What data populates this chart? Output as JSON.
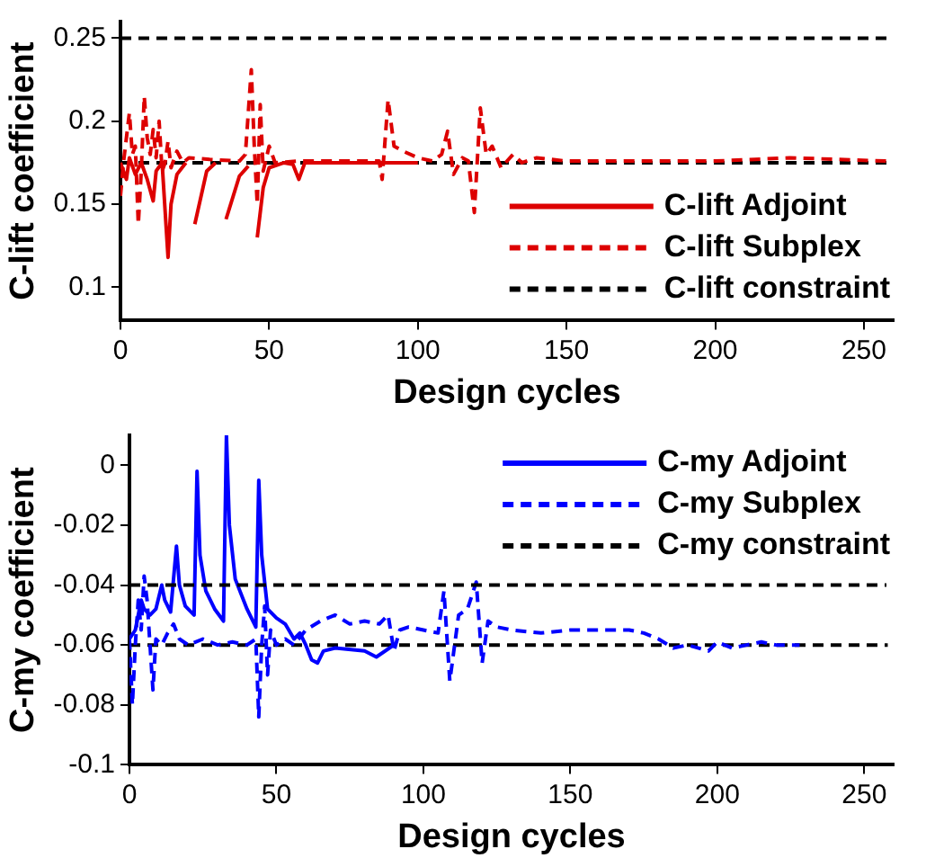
{
  "chart_data": [
    {
      "type": "line",
      "xlabel": "Design cycles",
      "ylabel": "C-lift coefficient",
      "xlim": [
        0,
        260
      ],
      "xticks": [
        0,
        50,
        100,
        150,
        200,
        250
      ],
      "ylim": [
        0.08,
        0.26
      ],
      "yticks": [
        {
          "value": 0.1,
          "label": "0.1"
        },
        {
          "value": 0.15,
          "label": "0.15"
        },
        {
          "value": 0.2,
          "label": "0.2"
        },
        {
          "value": 0.25,
          "label": "0.25"
        }
      ],
      "grid": false,
      "legend": "bottom right",
      "marker": "none",
      "ref_lines": [
        {
          "axis": "y",
          "value": 0.25,
          "color": "#000000",
          "line_style": "dashed"
        }
      ],
      "series": [
        {
          "name": "C-lift Adjoint",
          "color": "#dd0000",
          "line_style": "solid",
          "x": [
            0,
            2,
            3,
            5,
            7,
            9,
            11,
            12,
            14,
            16,
            17,
            19,
            22,
            23,
            25,
            29,
            32,
            33,
            35.5,
            40,
            43,
            44,
            46,
            48,
            50,
            55,
            58,
            60,
            62,
            70,
            100
          ],
          "values": [
            0.175,
            0.165,
            0.178,
            0.168,
            0.175,
            0.165,
            0.152,
            0.17,
            0.175,
            0.118,
            0.15,
            0.168,
            0.175,
            null,
            0.138,
            0.17,
            0.175,
            null,
            0.141,
            0.167,
            0.173,
            null,
            0.13,
            0.16,
            0.172,
            0.175,
            0.174,
            0.165,
            0.175,
            0.175,
            0.175
          ]
        },
        {
          "name": "C-lift Subplex",
          "color": "#dd0000",
          "line_style": "dashed",
          "x": [
            0,
            1,
            3,
            4,
            5,
            6,
            7,
            8,
            9,
            10,
            11,
            12,
            13,
            14,
            15,
            16,
            17,
            19,
            21,
            23,
            30,
            40,
            42,
            44,
            45,
            46,
            47,
            48,
            50,
            52,
            60,
            80,
            87,
            88,
            90,
            92,
            95,
            100,
            105,
            108,
            110,
            112,
            115,
            117,
            119,
            121,
            123,
            125,
            128,
            132,
            135,
            140,
            150,
            200,
            225,
            258
          ],
          "values": [
            0.155,
            0.175,
            0.205,
            0.18,
            0.185,
            0.138,
            0.17,
            0.215,
            0.19,
            0.18,
            0.195,
            0.178,
            0.2,
            0.17,
            0.175,
            0.188,
            0.172,
            0.182,
            0.175,
            0.178,
            0.177,
            0.176,
            0.18,
            0.231,
            0.185,
            0.15,
            0.21,
            0.17,
            0.185,
            0.175,
            0.176,
            0.176,
            0.176,
            0.165,
            0.213,
            0.185,
            0.182,
            0.178,
            0.176,
            0.18,
            0.194,
            0.168,
            0.178,
            0.176,
            0.145,
            0.208,
            0.18,
            0.185,
            0.172,
            0.18,
            0.175,
            0.178,
            0.176,
            0.176,
            0.178,
            0.176
          ]
        },
        {
          "name": "C-lift constraint",
          "color": "#000000",
          "line_style": "dashed",
          "x": [
            0,
            258
          ],
          "values": [
            0.175,
            0.175
          ]
        }
      ]
    },
    {
      "type": "line",
      "xlabel": "Design cycles",
      "ylabel": "C-my coefficient",
      "xlim": [
        0,
        260
      ],
      "xticks": [
        0,
        50,
        100,
        150,
        200,
        250
      ],
      "ylim": [
        -0.1,
        0.01
      ],
      "yticks": [
        -0.1,
        -0.08,
        -0.06,
        -0.04,
        -0.02,
        0
      ],
      "grid": false,
      "legend": "top right",
      "marker": "none",
      "ref_lines": [
        {
          "axis": "y",
          "value": -0.04,
          "color": "#000000",
          "line_style": "dashed"
        }
      ],
      "series": [
        {
          "name": "C-my Adjoint",
          "color": "#0000ff",
          "line_style": "solid",
          "x": [
            0,
            2,
            4,
            5,
            7,
            9,
            11,
            12,
            14,
            16,
            17,
            19,
            22,
            23,
            24,
            26,
            29,
            32,
            33,
            34,
            36,
            40,
            43,
            44,
            45,
            47,
            50,
            53,
            56,
            58,
            60,
            62,
            64,
            66,
            70,
            80,
            84,
            90
          ],
          "values": [
            -0.058,
            -0.055,
            -0.045,
            -0.048,
            -0.05,
            -0.048,
            -0.04,
            -0.045,
            -0.049,
            -0.027,
            -0.04,
            -0.047,
            -0.05,
            -0.002,
            -0.03,
            -0.042,
            -0.048,
            -0.052,
            0.01,
            -0.02,
            -0.038,
            -0.048,
            -0.054,
            -0.005,
            -0.03,
            -0.048,
            -0.051,
            -0.053,
            -0.058,
            -0.056,
            -0.06,
            -0.065,
            -0.066,
            -0.062,
            -0.061,
            -0.062,
            -0.064,
            -0.06
          ]
        },
        {
          "name": "C-my Subplex",
          "color": "#0000ff",
          "line_style": "dashed",
          "x": [
            0,
            1,
            2,
            3,
            4,
            5,
            6,
            7,
            8,
            9,
            11,
            13,
            15,
            17,
            20,
            25,
            30,
            35,
            40,
            43,
            44,
            45,
            46,
            47,
            48,
            50,
            53,
            56,
            60,
            65,
            70,
            75,
            80,
            85,
            88,
            90,
            92,
            95,
            100,
            105,
            107,
            109,
            112,
            115,
            118,
            120,
            122,
            125,
            130,
            140,
            150,
            160,
            170,
            175,
            180,
            185,
            190,
            197,
            200,
            205,
            210,
            215,
            220,
            228
          ],
          "values": [
            -0.058,
            -0.08,
            -0.06,
            -0.045,
            -0.055,
            -0.037,
            -0.045,
            -0.06,
            -0.075,
            -0.058,
            -0.06,
            -0.056,
            -0.053,
            -0.058,
            -0.06,
            -0.058,
            -0.06,
            -0.059,
            -0.06,
            -0.058,
            -0.084,
            -0.06,
            -0.047,
            -0.07,
            -0.055,
            -0.06,
            -0.058,
            -0.06,
            -0.055,
            -0.052,
            -0.05,
            -0.053,
            -0.052,
            -0.053,
            -0.05,
            -0.062,
            -0.055,
            -0.054,
            -0.055,
            -0.056,
            -0.042,
            -0.072,
            -0.05,
            -0.048,
            -0.039,
            -0.066,
            -0.052,
            -0.054,
            -0.055,
            -0.056,
            -0.055,
            -0.055,
            -0.055,
            -0.056,
            -0.058,
            -0.061,
            -0.06,
            -0.062,
            -0.059,
            -0.061,
            -0.06,
            -0.059,
            -0.06,
            -0.06
          ]
        },
        {
          "name": "C-my constraint",
          "color": "#000000",
          "line_style": "dashed",
          "x": [
            0,
            258
          ],
          "values": [
            -0.06,
            -0.06
          ]
        }
      ]
    }
  ]
}
